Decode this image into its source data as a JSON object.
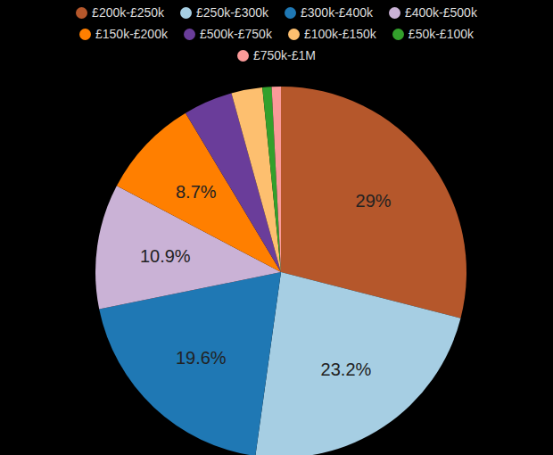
{
  "chart_data": {
    "type": "pie",
    "categories": [
      "£200k-£250k",
      "£250k-£300k",
      "£300k-£400k",
      "£400k-£500k",
      "£150k-£200k",
      "£500k-£750k",
      "£100k-£150k",
      "£50k-£100k",
      "£750k-£1M"
    ],
    "values": [
      29,
      23.2,
      19.6,
      10.9,
      8.7,
      4.3,
      2.7,
      0.8,
      0.8
    ],
    "value_labels": [
      "29%",
      "23.2%",
      "19.6%",
      "10.9%",
      "8.7%",
      null,
      null,
      null,
      null
    ],
    "colors": [
      "#b5572b",
      "#a6cee3",
      "#1f78b4",
      "#cab2d6",
      "#ff7f00",
      "#6a3d9a",
      "#fdbf6f",
      "#33a02c",
      "#fb9a99"
    ],
    "data_labels": true,
    "legend": "top"
  }
}
